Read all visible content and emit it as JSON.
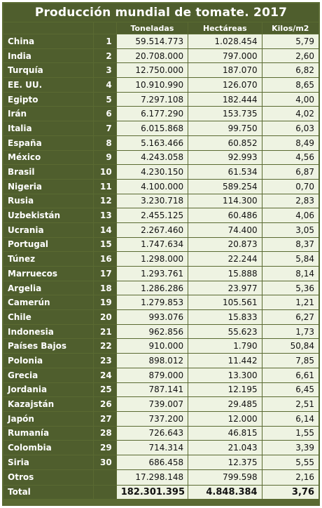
{
  "title": "Producción mundial de tomate. 2017",
  "headers": {
    "name": "",
    "rank": "",
    "tonnes": "Toneladas",
    "hectares": "Hectáreas",
    "yield": "Kilos/m2"
  },
  "rows": [
    {
      "country": "China",
      "rank": "1",
      "tonnes": "59.514.773",
      "hectares": "1.028.454",
      "yield": "5,79"
    },
    {
      "country": "India",
      "rank": "2",
      "tonnes": "20.708.000",
      "hectares": "797.000",
      "yield": "2,60"
    },
    {
      "country": "Turquía",
      "rank": "3",
      "tonnes": "12.750.000",
      "hectares": "187.070",
      "yield": "6,82"
    },
    {
      "country": "EE. UU.",
      "rank": "4",
      "tonnes": "10.910.990",
      "hectares": "126.070",
      "yield": "8,65"
    },
    {
      "country": "Egipto",
      "rank": "5",
      "tonnes": "7.297.108",
      "hectares": "182.444",
      "yield": "4,00"
    },
    {
      "country": "Irán",
      "rank": "6",
      "tonnes": "6.177.290",
      "hectares": "153.735",
      "yield": "4,02"
    },
    {
      "country": "Italia",
      "rank": "7",
      "tonnes": "6.015.868",
      "hectares": "99.750",
      "yield": "6,03"
    },
    {
      "country": "España",
      "rank": "8",
      "tonnes": "5.163.466",
      "hectares": "60.852",
      "yield": "8,49"
    },
    {
      "country": "México",
      "rank": "9",
      "tonnes": "4.243.058",
      "hectares": "92.993",
      "yield": "4,56"
    },
    {
      "country": "Brasil",
      "rank": "10",
      "tonnes": "4.230.150",
      "hectares": "61.534",
      "yield": "6,87"
    },
    {
      "country": "Nigeria",
      "rank": "11",
      "tonnes": "4.100.000",
      "hectares": "589.254",
      "yield": "0,70"
    },
    {
      "country": "Rusia",
      "rank": "12",
      "tonnes": "3.230.718",
      "hectares": "114.300",
      "yield": "2,83"
    },
    {
      "country": "Uzbekistán",
      "rank": "13",
      "tonnes": "2.455.125",
      "hectares": "60.486",
      "yield": "4,06"
    },
    {
      "country": "Ucrania",
      "rank": "14",
      "tonnes": "2.267.460",
      "hectares": "74.400",
      "yield": "3,05"
    },
    {
      "country": "Portugal",
      "rank": "15",
      "tonnes": "1.747.634",
      "hectares": "20.873",
      "yield": "8,37"
    },
    {
      "country": "Túnez",
      "rank": "16",
      "tonnes": "1.298.000",
      "hectares": "22.244",
      "yield": "5,84"
    },
    {
      "country": "Marruecos",
      "rank": "17",
      "tonnes": "1.293.761",
      "hectares": "15.888",
      "yield": "8,14"
    },
    {
      "country": "Argelia",
      "rank": "18",
      "tonnes": "1.286.286",
      "hectares": "23.977",
      "yield": "5,36"
    },
    {
      "country": "Camerún",
      "rank": "19",
      "tonnes": "1.279.853",
      "hectares": "105.561",
      "yield": "1,21"
    },
    {
      "country": "Chile",
      "rank": "20",
      "tonnes": "993.076",
      "hectares": "15.833",
      "yield": "6,27"
    },
    {
      "country": "Indonesia",
      "rank": "21",
      "tonnes": "962.856",
      "hectares": "55.623",
      "yield": "1,73"
    },
    {
      "country": "Países Bajos",
      "rank": "22",
      "tonnes": "910.000",
      "hectares": "1.790",
      "yield": "50,84"
    },
    {
      "country": "Polonia",
      "rank": "23",
      "tonnes": "898.012",
      "hectares": "11.442",
      "yield": "7,85"
    },
    {
      "country": "Grecia",
      "rank": "24",
      "tonnes": "879.000",
      "hectares": "13.300",
      "yield": "6,61"
    },
    {
      "country": "Jordania",
      "rank": "25",
      "tonnes": "787.141",
      "hectares": "12.195",
      "yield": "6,45"
    },
    {
      "country": "Kazajstán",
      "rank": "26",
      "tonnes": "739.007",
      "hectares": "29.485",
      "yield": "2,51"
    },
    {
      "country": "Japón",
      "rank": "27",
      "tonnes": "737.200",
      "hectares": "12.000",
      "yield": "6,14"
    },
    {
      "country": "Rumanía",
      "rank": "28",
      "tonnes": "726.643",
      "hectares": "46.815",
      "yield": "1,55"
    },
    {
      "country": "Colombia",
      "rank": "29",
      "tonnes": "714.314",
      "hectares": "21.043",
      "yield": "3,39"
    },
    {
      "country": "Siria",
      "rank": "30",
      "tonnes": "686.458",
      "hectares": "12.375",
      "yield": "5,55"
    }
  ],
  "others": {
    "country": "Otros",
    "rank": "",
    "tonnes": "17.298.148",
    "hectares": "799.598",
    "yield": "2,16"
  },
  "total": {
    "country": "Total",
    "rank": "",
    "tonnes": "182.301.395",
    "hectares": "4.848.384",
    "yield": "3,76"
  },
  "colors": {
    "header_bg": "#4f5e2d",
    "cell_bg": "#eef3e2",
    "frame": "#5a6a32"
  }
}
